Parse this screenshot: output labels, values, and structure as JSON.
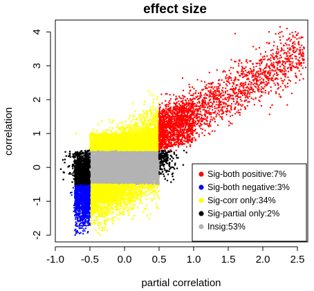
{
  "chart_data": {
    "type": "scatter",
    "title": "effect size",
    "xlabel": "partial correlation",
    "ylabel": "correlation",
    "xlim": [
      -1.0,
      2.65
    ],
    "ylim": [
      -2.2,
      4.35
    ],
    "x_ticks": [
      -1.0,
      -0.5,
      0.0,
      0.5,
      1.0,
      1.5,
      2.0,
      2.5
    ],
    "x_tick_labels": [
      "-1.0",
      "-0.5",
      "0.0",
      "0.5",
      "1.0",
      "1.5",
      "2.0",
      "2.5"
    ],
    "y_ticks": [
      -2,
      -1,
      0,
      1,
      2,
      3,
      4
    ],
    "y_tick_labels": [
      "-2",
      "-1",
      "0",
      "1",
      "2",
      "3",
      "4"
    ],
    "grid": false,
    "legend_position": "bottom-right",
    "series": [
      {
        "name": "Sig-both positive:7%",
        "color": "#ff0000",
        "share_percent": 7,
        "region": {
          "x": [
            0.5,
            2.6
          ],
          "y": [
            0.5,
            4.15
          ]
        },
        "trend_points": [
          [
            0.5,
            0.9
          ],
          [
            1.0,
            1.5
          ],
          [
            1.5,
            2.0
          ],
          [
            2.0,
            2.6
          ],
          [
            2.5,
            3.3
          ]
        ],
        "extreme_points": [
          [
            1.6,
            3.95
          ],
          [
            2.25,
            4.15
          ],
          [
            2.35,
            4.1
          ],
          [
            2.62,
            2.95
          ],
          [
            2.45,
            3.55
          ]
        ]
      },
      {
        "name": "Sig-both negative:3%",
        "color": "#0000ff",
        "share_percent": 3,
        "region": {
          "x": [
            -0.78,
            -0.5
          ],
          "y": [
            -1.95,
            -0.5
          ]
        },
        "extreme_points": [
          [
            -0.65,
            -1.95
          ],
          [
            -0.78,
            -0.75
          ]
        ]
      },
      {
        "name": "Sig-corr only:34%",
        "color": "#ffff00",
        "share_percent": 34,
        "region": {
          "x": [
            -0.72,
            0.5
          ],
          "y": [
            -2.0,
            2.25
          ]
        },
        "extreme_points": [
          [
            0.35,
            2.25
          ],
          [
            -0.35,
            -2.0
          ],
          [
            -0.7,
            1.0
          ]
        ]
      },
      {
        "name": "Sig-partial only:2%",
        "color": "#000000",
        "share_percent": 2,
        "region": {
          "x": [
            -0.92,
            0.75
          ],
          "y": [
            -0.5,
            0.5
          ]
        },
        "extreme_points": [
          [
            -0.92,
            -0.05
          ],
          [
            0.75,
            0.35
          ]
        ]
      },
      {
        "name": "Insig:53%",
        "color": "#b3b3b3",
        "share_percent": 53,
        "region": {
          "x": [
            -0.5,
            0.5
          ],
          "y": [
            -0.5,
            0.5
          ]
        }
      }
    ]
  }
}
